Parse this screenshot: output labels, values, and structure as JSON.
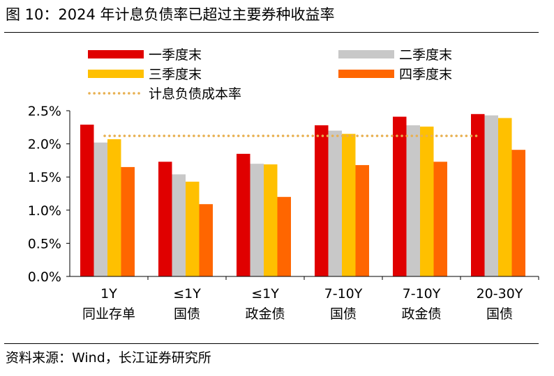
{
  "figure": {
    "title": "图 10：2024 年计息负债率已超过主要券种收益率",
    "source": "资料来源：Wind，长江证券研究所"
  },
  "colors": {
    "q1": "#E00000",
    "q2": "#C8C8C8",
    "q3": "#FFC000",
    "q4": "#FF6600",
    "ref_line": "#E8B050"
  },
  "chart_data": {
    "type": "bar",
    "title": "",
    "xlabel": "",
    "ylabel": "",
    "ylim": [
      0,
      2.5
    ],
    "y_ticks": [
      "0.0%",
      "0.5%",
      "1.0%",
      "1.5%",
      "2.0%",
      "2.5%"
    ],
    "y_tick_values": [
      0,
      0.5,
      1.0,
      1.5,
      2.0,
      2.5
    ],
    "categories": [
      {
        "line1": "1Y",
        "line2": "同业存单"
      },
      {
        "line1": "≤1Y",
        "line2": "国债"
      },
      {
        "line1": "≤1Y",
        "line2": "政金债"
      },
      {
        "line1": "7-10Y",
        "line2": "国债"
      },
      {
        "line1": "7-10Y",
        "line2": "政金债"
      },
      {
        "line1": "20-30Y",
        "line2": "国债"
      }
    ],
    "series": [
      {
        "name": "一季度末",
        "color_key": "q1",
        "values": [
          2.29,
          1.73,
          1.85,
          2.28,
          2.41,
          2.45
        ]
      },
      {
        "name": "二季度末",
        "color_key": "q2",
        "values": [
          2.02,
          1.54,
          1.7,
          2.2,
          2.28,
          2.43
        ]
      },
      {
        "name": "三季度末",
        "color_key": "q3",
        "values": [
          2.07,
          1.43,
          1.69,
          2.15,
          2.26,
          2.39
        ]
      },
      {
        "name": "四季度末",
        "color_key": "q4",
        "values": [
          1.65,
          1.09,
          1.2,
          1.68,
          1.73,
          1.91
        ]
      }
    ],
    "reference_line": {
      "name": "计息负债成本率",
      "value": 2.12,
      "style": "dotted"
    },
    "legend_placement": "top",
    "grid": false
  }
}
